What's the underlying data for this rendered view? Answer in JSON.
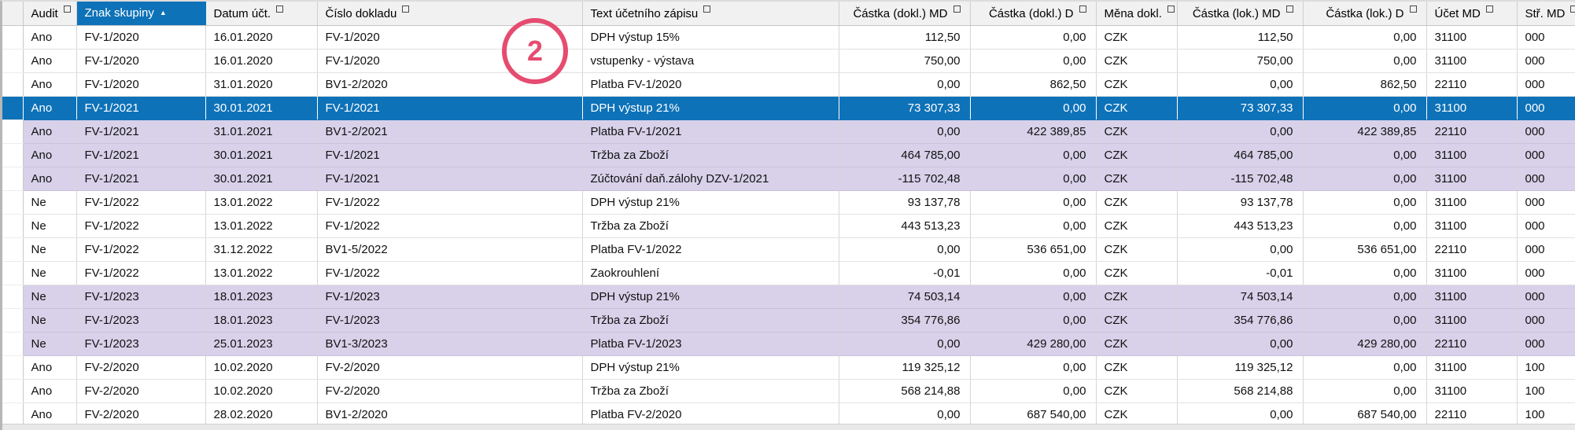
{
  "colors": {
    "accent_blue": "#0e72b8",
    "group_purple": "#d8d1e9",
    "header_gray": "#f1f1f1",
    "annotation_pink": "#e64b70"
  },
  "annotation": {
    "label": "2"
  },
  "table": {
    "columns": [
      {
        "id": "audit",
        "label": "Audit",
        "align": "left"
      },
      {
        "id": "znak",
        "label": "Znak skupiny",
        "align": "left",
        "sorted": "asc"
      },
      {
        "id": "datum",
        "label": "Datum účt.",
        "align": "left"
      },
      {
        "id": "cislo",
        "label": "Číslo dokladu",
        "align": "left"
      },
      {
        "id": "text",
        "label": "Text účetního zápisu",
        "align": "left"
      },
      {
        "id": "dokl_md",
        "label": "Částka (dokl.) MD",
        "align": "right"
      },
      {
        "id": "dokl_d",
        "label": "Částka (dokl.) D",
        "align": "right"
      },
      {
        "id": "mena",
        "label": "Měna dokl.",
        "align": "left"
      },
      {
        "id": "lok_md",
        "label": "Částka (lok.) MD",
        "align": "right"
      },
      {
        "id": "lok_d",
        "label": "Částka (lok.) D",
        "align": "right"
      },
      {
        "id": "ucet_md",
        "label": "Účet MD",
        "align": "left"
      },
      {
        "id": "str_md",
        "label": "Stř. MD",
        "align": "left"
      }
    ],
    "rows": [
      {
        "state": "normal",
        "audit": "Ano",
        "znak": "FV-1/2020",
        "datum": "16.01.2020",
        "cislo": "FV-1/2020",
        "text": "DPH výstup 15%",
        "dokl_md": "112,50",
        "dokl_d": "0,00",
        "mena": "CZK",
        "lok_md": "112,50",
        "lok_d": "0,00",
        "ucet_md": "31100",
        "str_md": "000"
      },
      {
        "state": "normal",
        "audit": "Ano",
        "znak": "FV-1/2020",
        "datum": "16.01.2020",
        "cislo": "FV-1/2020",
        "text": "vstupenky - výstava",
        "dokl_md": "750,00",
        "dokl_d": "0,00",
        "mena": "CZK",
        "lok_md": "750,00",
        "lok_d": "0,00",
        "ucet_md": "31100",
        "str_md": "000"
      },
      {
        "state": "normal",
        "audit": "Ano",
        "znak": "FV-1/2020",
        "datum": "31.01.2020",
        "cislo": "BV1-2/2020",
        "text": "Platba FV-1/2020",
        "dokl_md": "0,00",
        "dokl_d": "862,50",
        "mena": "CZK",
        "lok_md": "0,00",
        "lok_d": "862,50",
        "ucet_md": "22110",
        "str_md": "000"
      },
      {
        "state": "selected",
        "audit": "Ano",
        "znak": "FV-1/2021",
        "datum": "30.01.2021",
        "cislo": "FV-1/2021",
        "text": "DPH výstup 21%",
        "dokl_md": "73 307,33",
        "dokl_d": "0,00",
        "mena": "CZK",
        "lok_md": "73 307,33",
        "lok_d": "0,00",
        "ucet_md": "31100",
        "str_md": "000"
      },
      {
        "state": "alt",
        "audit": "Ano",
        "znak": "FV-1/2021",
        "datum": "31.01.2021",
        "cislo": "BV1-2/2021",
        "text": "Platba FV-1/2021",
        "dokl_md": "0,00",
        "dokl_d": "422 389,85",
        "mena": "CZK",
        "lok_md": "0,00",
        "lok_d": "422 389,85",
        "ucet_md": "22110",
        "str_md": "000"
      },
      {
        "state": "alt",
        "audit": "Ano",
        "znak": "FV-1/2021",
        "datum": "30.01.2021",
        "cislo": "FV-1/2021",
        "text": "Tržba za Zboží",
        "dokl_md": "464 785,00",
        "dokl_d": "0,00",
        "mena": "CZK",
        "lok_md": "464 785,00",
        "lok_d": "0,00",
        "ucet_md": "31100",
        "str_md": "000"
      },
      {
        "state": "alt",
        "audit": "Ano",
        "znak": "FV-1/2021",
        "datum": "30.01.2021",
        "cislo": "FV-1/2021",
        "text": "Zúčtování daň.zálohy DZV-1/2021",
        "dokl_md": "-115 702,48",
        "dokl_d": "0,00",
        "mena": "CZK",
        "lok_md": "-115 702,48",
        "lok_d": "0,00",
        "ucet_md": "31100",
        "str_md": "000"
      },
      {
        "state": "normal",
        "audit": "Ne",
        "znak": "FV-1/2022",
        "datum": "13.01.2022",
        "cislo": "FV-1/2022",
        "text": "DPH výstup 21%",
        "dokl_md": "93 137,78",
        "dokl_d": "0,00",
        "mena": "CZK",
        "lok_md": "93 137,78",
        "lok_d": "0,00",
        "ucet_md": "31100",
        "str_md": "000"
      },
      {
        "state": "normal",
        "audit": "Ne",
        "znak": "FV-1/2022",
        "datum": "13.01.2022",
        "cislo": "FV-1/2022",
        "text": "Tržba za Zboží",
        "dokl_md": "443 513,23",
        "dokl_d": "0,00",
        "mena": "CZK",
        "lok_md": "443 513,23",
        "lok_d": "0,00",
        "ucet_md": "31100",
        "str_md": "000"
      },
      {
        "state": "normal",
        "audit": "Ne",
        "znak": "FV-1/2022",
        "datum": "31.12.2022",
        "cislo": "BV1-5/2022",
        "text": "Platba FV-1/2022",
        "dokl_md": "0,00",
        "dokl_d": "536 651,00",
        "mena": "CZK",
        "lok_md": "0,00",
        "lok_d": "536 651,00",
        "ucet_md": "22110",
        "str_md": "000"
      },
      {
        "state": "normal",
        "audit": "Ne",
        "znak": "FV-1/2022",
        "datum": "13.01.2022",
        "cislo": "FV-1/2022",
        "text": "Zaokrouhlení",
        "dokl_md": "-0,01",
        "dokl_d": "0,00",
        "mena": "CZK",
        "lok_md": "-0,01",
        "lok_d": "0,00",
        "ucet_md": "31100",
        "str_md": "000"
      },
      {
        "state": "alt",
        "audit": "Ne",
        "znak": "FV-1/2023",
        "datum": "18.01.2023",
        "cislo": "FV-1/2023",
        "text": "DPH výstup 21%",
        "dokl_md": "74 503,14",
        "dokl_d": "0,00",
        "mena": "CZK",
        "lok_md": "74 503,14",
        "lok_d": "0,00",
        "ucet_md": "31100",
        "str_md": "000"
      },
      {
        "state": "alt",
        "audit": "Ne",
        "znak": "FV-1/2023",
        "datum": "18.01.2023",
        "cislo": "FV-1/2023",
        "text": "Tržba za Zboží",
        "dokl_md": "354 776,86",
        "dokl_d": "0,00",
        "mena": "CZK",
        "lok_md": "354 776,86",
        "lok_d": "0,00",
        "ucet_md": "31100",
        "str_md": "000"
      },
      {
        "state": "alt",
        "audit": "Ne",
        "znak": "FV-1/2023",
        "datum": "25.01.2023",
        "cislo": "BV1-3/2023",
        "text": "Platba FV-1/2023",
        "dokl_md": "0,00",
        "dokl_d": "429 280,00",
        "mena": "CZK",
        "lok_md": "0,00",
        "lok_d": "429 280,00",
        "ucet_md": "22110",
        "str_md": "000"
      },
      {
        "state": "normal",
        "audit": "Ano",
        "znak": "FV-2/2020",
        "datum": "10.02.2020",
        "cislo": "FV-2/2020",
        "text": "DPH výstup 21%",
        "dokl_md": "119 325,12",
        "dokl_d": "0,00",
        "mena": "CZK",
        "lok_md": "119 325,12",
        "lok_d": "0,00",
        "ucet_md": "31100",
        "str_md": "100"
      },
      {
        "state": "normal",
        "audit": "Ano",
        "znak": "FV-2/2020",
        "datum": "10.02.2020",
        "cislo": "FV-2/2020",
        "text": "Tržba za Zboží",
        "dokl_md": "568 214,88",
        "dokl_d": "0,00",
        "mena": "CZK",
        "lok_md": "568 214,88",
        "lok_d": "0,00",
        "ucet_md": "31100",
        "str_md": "100"
      },
      {
        "state": "normal",
        "audit": "Ano",
        "znak": "FV-2/2020",
        "datum": "28.02.2020",
        "cislo": "BV1-2/2020",
        "text": "Platba FV-2/2020",
        "dokl_md": "0,00",
        "dokl_d": "687 540,00",
        "mena": "CZK",
        "lok_md": "0,00",
        "lok_d": "687 540,00",
        "ucet_md": "22110",
        "str_md": "100"
      }
    ]
  }
}
